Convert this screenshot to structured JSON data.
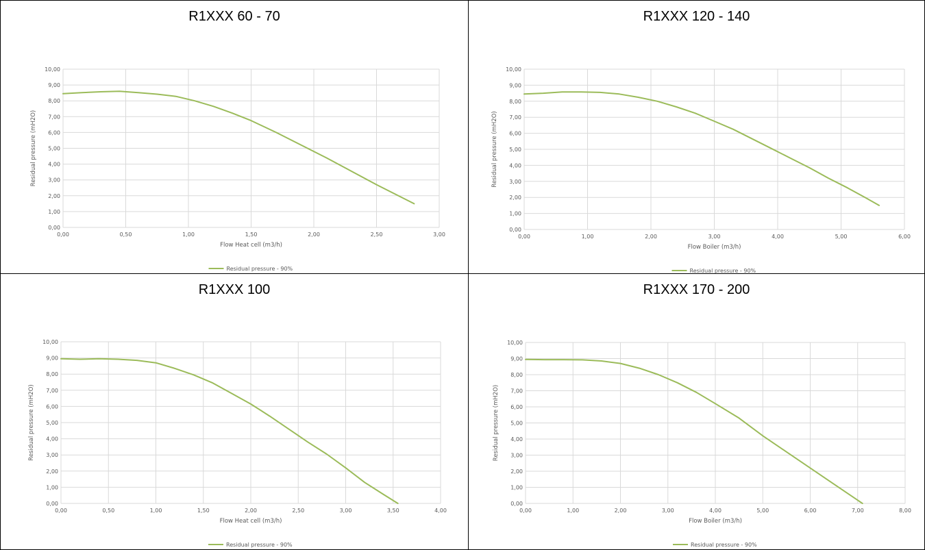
{
  "chart_data": [
    {
      "type": "line",
      "title": "R1XXX 60 - 70",
      "xlabel": "Flow Heat cell (m3/h)",
      "ylabel": "Residual pressure (mH2O)",
      "xlim": [
        0,
        3
      ],
      "ylim": [
        0,
        10
      ],
      "x_ticks": [
        "0,00",
        "0,50",
        "1,00",
        "1,50",
        "2,00",
        "2,50",
        "3,00"
      ],
      "y_ticks": [
        "0,00",
        "1,00",
        "2,00",
        "3,00",
        "4,00",
        "5,00",
        "6,00",
        "7,00",
        "8,00",
        "9,00",
        "10,00"
      ],
      "grid": true,
      "legend_position": "bottom",
      "series": [
        {
          "name": "Residual pressure - 90%",
          "color": "#9BBB59",
          "x": [
            0.0,
            0.15,
            0.3,
            0.45,
            0.6,
            0.75,
            0.9,
            1.05,
            1.2,
            1.35,
            1.5,
            1.7,
            1.9,
            2.1,
            2.3,
            2.5,
            2.7,
            2.8
          ],
          "y": [
            8.45,
            8.52,
            8.57,
            8.6,
            8.52,
            8.42,
            8.28,
            8.0,
            7.65,
            7.22,
            6.75,
            6.0,
            5.2,
            4.4,
            3.55,
            2.7,
            1.9,
            1.5
          ]
        }
      ]
    },
    {
      "type": "line",
      "title": "R1XXX 120 - 140",
      "xlabel": "Flow Boiler (m3/h)",
      "ylabel": "Residual pressure (mH2O)",
      "xlim": [
        0,
        6
      ],
      "ylim": [
        0,
        10
      ],
      "x_ticks": [
        "0,00",
        "1,00",
        "2,00",
        "3,00",
        "4,00",
        "5,00",
        "6,00"
      ],
      "y_ticks": [
        "0,00",
        "1,00",
        "2,00",
        "3,00",
        "4,00",
        "5,00",
        "6,00",
        "7,00",
        "8,00",
        "9,00",
        "10,00"
      ],
      "grid": true,
      "legend_position": "bottom",
      "series": [
        {
          "name": "Residual pressure - 90%",
          "color": "#9BBB59",
          "x": [
            0.0,
            0.3,
            0.6,
            0.9,
            1.2,
            1.5,
            1.8,
            2.1,
            2.4,
            2.7,
            3.0,
            3.3,
            3.6,
            3.9,
            4.2,
            4.5,
            4.8,
            5.1,
            5.4,
            5.6
          ],
          "y": [
            8.45,
            8.5,
            8.58,
            8.58,
            8.55,
            8.45,
            8.25,
            8.0,
            7.65,
            7.25,
            6.75,
            6.25,
            5.65,
            5.05,
            4.45,
            3.85,
            3.2,
            2.6,
            1.95,
            1.5
          ]
        }
      ]
    },
    {
      "type": "line",
      "title": "R1XXX 100",
      "xlabel": "Flow Heat cell (m3/h)",
      "ylabel": "Residual pressure (mH2O)",
      "xlim": [
        0,
        4
      ],
      "ylim": [
        0,
        10
      ],
      "x_ticks": [
        "0,00",
        "0,50",
        "1,00",
        "1,50",
        "2,00",
        "2,50",
        "3,00",
        "3,50",
        "4,00"
      ],
      "y_ticks": [
        "0,00",
        "1,00",
        "2,00",
        "3,00",
        "4,00",
        "5,00",
        "6,00",
        "7,00",
        "8,00",
        "9,00",
        "10,00"
      ],
      "grid": true,
      "legend_position": "bottom",
      "series": [
        {
          "name": "Residual pressure - 90%",
          "color": "#9BBB59",
          "x": [
            0.0,
            0.2,
            0.4,
            0.6,
            0.8,
            1.0,
            1.2,
            1.4,
            1.6,
            1.8,
            2.0,
            2.2,
            2.4,
            2.6,
            2.8,
            3.0,
            3.2,
            3.4,
            3.55
          ],
          "y": [
            8.95,
            8.92,
            8.95,
            8.92,
            8.85,
            8.7,
            8.35,
            7.95,
            7.45,
            6.8,
            6.15,
            5.4,
            4.6,
            3.8,
            3.05,
            2.2,
            1.3,
            0.55,
            0.0
          ]
        }
      ]
    },
    {
      "type": "line",
      "title": "R1XXX 170 - 200",
      "xlabel": "Flow Boiler (m3/h)",
      "ylabel": "Residual pressure (mH2O)",
      "xlim": [
        0,
        8
      ],
      "ylim": [
        0,
        10
      ],
      "x_ticks": [
        "0,00",
        "1,00",
        "2,00",
        "3,00",
        "4,00",
        "5,00",
        "6,00",
        "7,00",
        "8,00"
      ],
      "y_ticks": [
        "0,00",
        "1,00",
        "2,00",
        "3,00",
        "4,00",
        "5,00",
        "6,00",
        "7,00",
        "8,00",
        "9,00",
        "10,00"
      ],
      "grid": true,
      "legend_position": "bottom",
      "series": [
        {
          "name": "Residual pressure - 90%",
          "color": "#9BBB59",
          "x": [
            0.0,
            0.4,
            0.8,
            1.2,
            1.6,
            2.0,
            2.4,
            2.8,
            3.2,
            3.6,
            4.0,
            4.5,
            5.0,
            5.5,
            6.0,
            6.5,
            7.0,
            7.1
          ],
          "y": [
            8.95,
            8.93,
            8.93,
            8.92,
            8.85,
            8.7,
            8.4,
            8.0,
            7.5,
            6.9,
            6.2,
            5.3,
            4.2,
            3.2,
            2.2,
            1.2,
            0.2,
            0.0
          ]
        }
      ]
    }
  ]
}
